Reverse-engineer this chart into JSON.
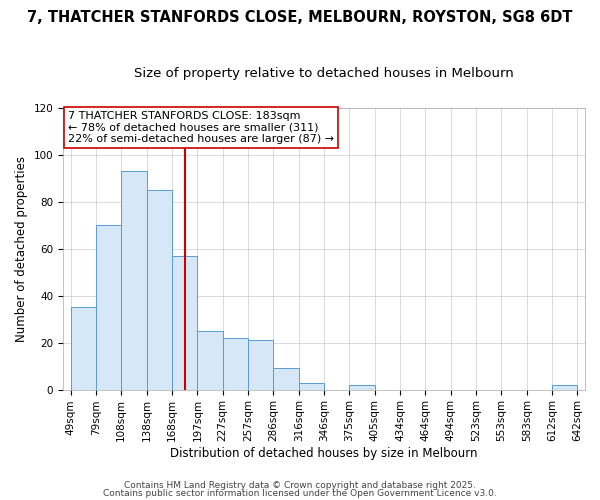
{
  "title": "7, THATCHER STANFORDS CLOSE, MELBOURN, ROYSTON, SG8 6DT",
  "subtitle": "Size of property relative to detached houses in Melbourn",
  "xlabel": "Distribution of detached houses by size in Melbourn",
  "ylabel": "Number of detached properties",
  "bar_values": [
    35,
    70,
    93,
    85,
    57,
    25,
    22,
    21,
    9,
    3,
    0,
    2,
    0,
    0,
    0,
    0,
    0,
    0,
    0,
    2
  ],
  "bin_labels": [
    "49sqm",
    "79sqm",
    "108sqm",
    "138sqm",
    "168sqm",
    "197sqm",
    "227sqm",
    "257sqm",
    "286sqm",
    "316sqm",
    "346sqm",
    "375sqm",
    "405sqm",
    "434sqm",
    "464sqm",
    "494sqm",
    "523sqm",
    "553sqm",
    "583sqm",
    "612sqm",
    "642sqm"
  ],
  "bar_color": "#d6e8f7",
  "bar_edge_color": "#5b9bd5",
  "vline_color": "#cc0000",
  "annotation_line1": "7 THATCHER STANFORDS CLOSE: 183sqm",
  "annotation_line2": "← 78% of detached houses are smaller (311)",
  "annotation_line3": "22% of semi-detached houses are larger (87) →",
  "annotation_box_color": "#ffffff",
  "annotation_box_edge": "#cc0000",
  "ylim": [
    0,
    120
  ],
  "yticks": [
    0,
    20,
    40,
    60,
    80,
    100,
    120
  ],
  "footer1": "Contains HM Land Registry data © Crown copyright and database right 2025.",
  "footer2": "Contains public sector information licensed under the Open Government Licence v3.0.",
  "background_color": "#ffffff",
  "grid_color": "#cccccc",
  "title_fontsize": 10.5,
  "subtitle_fontsize": 9.5,
  "axis_label_fontsize": 8.5,
  "tick_fontsize": 7.5,
  "annotation_fontsize": 8,
  "footer_fontsize": 6.5
}
